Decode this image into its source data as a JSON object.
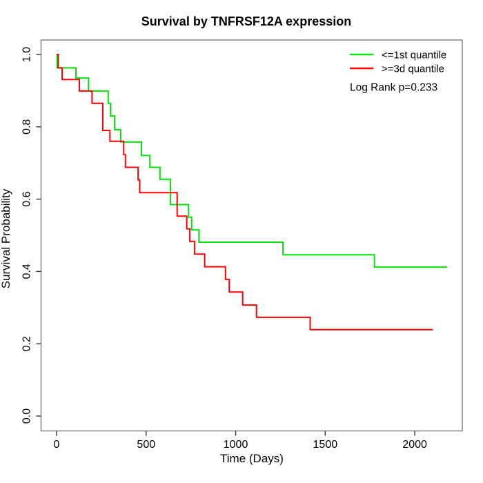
{
  "chart_data": {
    "type": "line",
    "variant": "kaplan-meier-step-curves",
    "title": "Survival by TNFRSF12A expression",
    "xlabel": "Time (Days)",
    "ylabel": "Survival Probability",
    "grid": false,
    "x_axis": {
      "ticks": [
        {
          "value": 0,
          "label": "0"
        },
        {
          "value": 500,
          "label": "500"
        },
        {
          "value": 1000,
          "label": "1000"
        },
        {
          "value": 1500,
          "label": "1500"
        },
        {
          "value": 2000,
          "label": "2000"
        }
      ],
      "data_range": [
        0,
        2265
      ]
    },
    "y_axis": {
      "ticks": [
        {
          "value": 0.0,
          "label": "0.0"
        },
        {
          "value": 0.2,
          "label": "0.2"
        },
        {
          "value": 0.4,
          "label": "0.4"
        },
        {
          "value": 0.6,
          "label": "0.6"
        },
        {
          "value": 0.8,
          "label": "0.8"
        },
        {
          "value": 1.0,
          "label": "1.0"
        }
      ],
      "data_range": [
        0.0,
        1.0
      ]
    },
    "legend": {
      "position": "top-right",
      "entries": [
        {
          "label": "<=1st quantile",
          "color": "#00e408"
        },
        {
          "label": ">=3d quantile",
          "color": "#ff0000"
        }
      ]
    },
    "annotation": {
      "text": "Log Rank p=0.233"
    },
    "series": [
      {
        "name": "<=1st quantile",
        "color": "#00e408",
        "start": {
          "time": 0,
          "survival": 1.0
        },
        "steps": [
          {
            "time": 3,
            "survival": 0.963
          },
          {
            "time": 108,
            "survival": 0.935
          },
          {
            "time": 178,
            "survival": 0.899
          },
          {
            "time": 288,
            "survival": 0.865
          },
          {
            "time": 301,
            "survival": 0.83
          },
          {
            "time": 324,
            "survival": 0.792
          },
          {
            "time": 358,
            "survival": 0.758
          },
          {
            "time": 474,
            "survival": 0.721
          },
          {
            "time": 521,
            "survival": 0.688
          },
          {
            "time": 577,
            "survival": 0.655
          },
          {
            "time": 636,
            "survival": 0.585
          },
          {
            "time": 737,
            "survival": 0.55
          },
          {
            "time": 754,
            "survival": 0.515
          },
          {
            "time": 795,
            "survival": 0.481
          },
          {
            "time": 1264,
            "survival": 0.446
          },
          {
            "time": 1775,
            "survival": 0.412
          }
        ],
        "end_time": 2181
      },
      {
        "name": ">=3d quantile",
        "color": "#ff0000",
        "start": {
          "time": 0,
          "survival": 1.0
        },
        "steps": [
          {
            "time": 9,
            "survival": 0.963
          },
          {
            "time": 31,
            "survival": 0.931
          },
          {
            "time": 127,
            "survival": 0.899
          },
          {
            "time": 198,
            "survival": 0.865
          },
          {
            "time": 258,
            "survival": 0.79
          },
          {
            "time": 298,
            "survival": 0.76
          },
          {
            "time": 375,
            "survival": 0.723
          },
          {
            "time": 384,
            "survival": 0.688
          },
          {
            "time": 455,
            "survival": 0.653
          },
          {
            "time": 464,
            "survival": 0.618
          },
          {
            "time": 673,
            "survival": 0.553
          },
          {
            "time": 727,
            "survival": 0.518
          },
          {
            "time": 744,
            "survival": 0.483
          },
          {
            "time": 770,
            "survival": 0.448
          },
          {
            "time": 827,
            "survival": 0.413
          },
          {
            "time": 943,
            "survival": 0.378
          },
          {
            "time": 964,
            "survival": 0.343
          },
          {
            "time": 1039,
            "survival": 0.307
          },
          {
            "time": 1116,
            "survival": 0.273
          },
          {
            "time": 1416,
            "survival": 0.239
          }
        ],
        "end_time": 2100
      }
    ]
  }
}
